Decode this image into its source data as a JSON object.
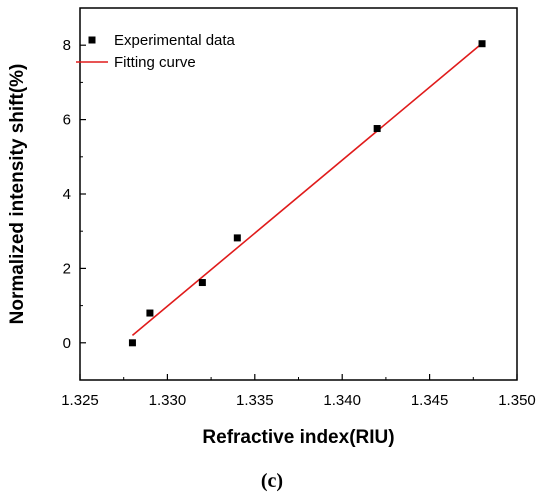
{
  "chart_data": {
    "type": "scatter",
    "xlabel": "Refractive index(RIU)",
    "ylabel": "Normalized intensity shift(%)",
    "xlim": [
      1.325,
      1.35
    ],
    "ylim": [
      -1,
      9
    ],
    "xticks": [
      "1.325",
      "1.330",
      "1.335",
      "1.340",
      "1.345",
      "1.350"
    ],
    "yticks": [
      "0",
      "2",
      "4",
      "6",
      "8"
    ],
    "grid": false,
    "legend_position": "top-left",
    "series": [
      {
        "name": "Experimental data",
        "kind": "scatter",
        "marker": "square",
        "color": "#000000",
        "x": [
          1.328,
          1.329,
          1.332,
          1.334,
          1.342,
          1.348
        ],
        "y": [
          0.0,
          0.8,
          1.62,
          2.82,
          5.76,
          8.04
        ]
      },
      {
        "name": "Fitting curve",
        "kind": "line",
        "color": "#e01b1b",
        "x": [
          1.328,
          1.348
        ],
        "y": [
          0.2,
          8.05
        ]
      }
    ]
  },
  "caption": "(c)"
}
